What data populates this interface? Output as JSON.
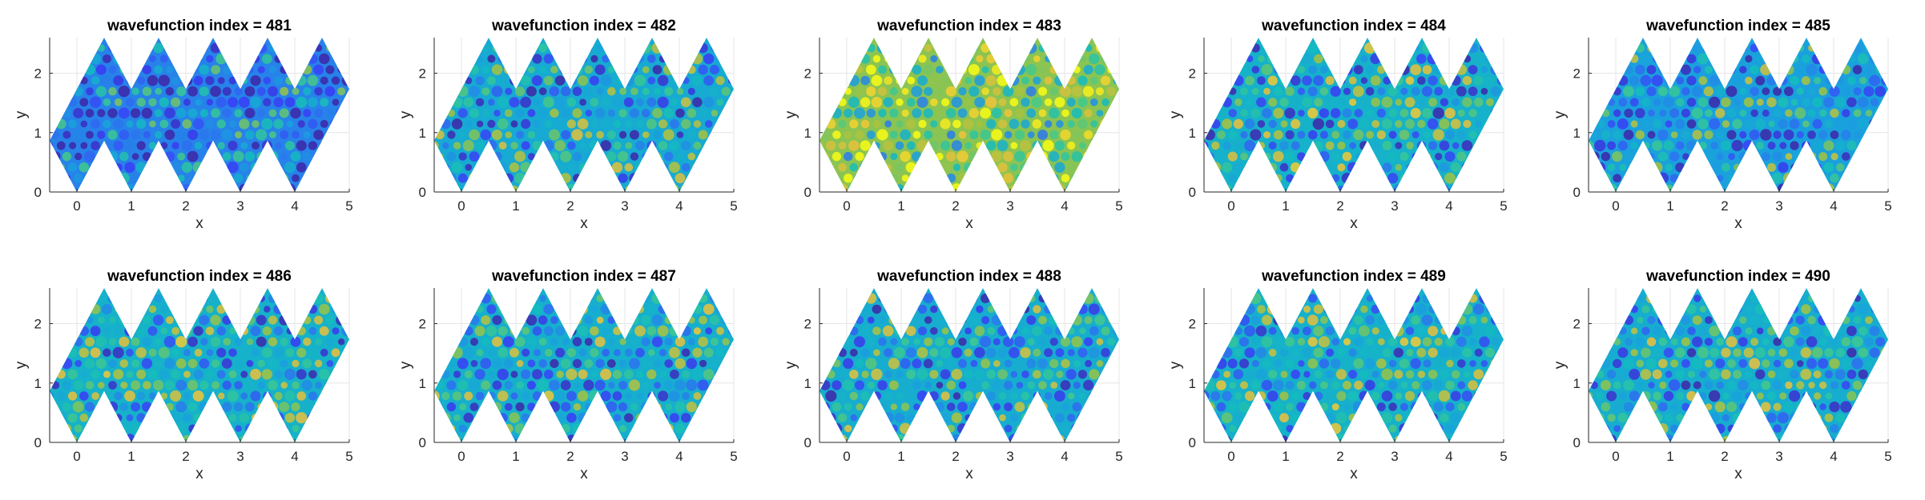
{
  "figure": {
    "background": "#ffffff"
  },
  "style": {
    "axis_color": "#262626",
    "grid_color": "#e6e6e6",
    "colormap": "parula",
    "colormap_stops": [
      "#3e26a8",
      "#3a3cf7",
      "#2f6ef1",
      "#1aa0de",
      "#13bdbd",
      "#3fc98f",
      "#a3c33f",
      "#f0c13b",
      "#f9fb15"
    ]
  },
  "chart_data": [
    {
      "type": "heatmap",
      "title": "wavefunction index = 481",
      "xlabel": "x",
      "ylabel": "y",
      "xlim": [
        -0.5,
        5
      ],
      "ylim": [
        0,
        2.6
      ],
      "xticks": [
        "0",
        "1",
        "2",
        "3",
        "4",
        "5"
      ],
      "yticks": [
        "0",
        "1",
        "2"
      ],
      "grid": true,
      "seed": 481,
      "mean_level": 0.3
    },
    {
      "type": "heatmap",
      "title": "wavefunction index = 482",
      "xlabel": "x",
      "ylabel": "y",
      "xlim": [
        -0.5,
        5
      ],
      "ylim": [
        0,
        2.6
      ],
      "xticks": [
        "0",
        "1",
        "2",
        "3",
        "4",
        "5"
      ],
      "yticks": [
        "0",
        "1",
        "2"
      ],
      "grid": true,
      "seed": 482,
      "mean_level": 0.42
    },
    {
      "type": "heatmap",
      "title": "wavefunction index = 483",
      "xlabel": "x",
      "ylabel": "y",
      "xlim": [
        -0.5,
        5
      ],
      "ylim": [
        0,
        2.6
      ],
      "xticks": [
        "0",
        "1",
        "2",
        "3",
        "4",
        "5"
      ],
      "yticks": [
        "0",
        "1",
        "2"
      ],
      "grid": true,
      "seed": 483,
      "mean_level": 0.72
    },
    {
      "type": "heatmap",
      "title": "wavefunction index = 484",
      "xlabel": "x",
      "ylabel": "y",
      "xlim": [
        -0.5,
        5
      ],
      "ylim": [
        0,
        2.6
      ],
      "xticks": [
        "0",
        "1",
        "2",
        "3",
        "4",
        "5"
      ],
      "yticks": [
        "0",
        "1",
        "2"
      ],
      "grid": true,
      "seed": 484,
      "mean_level": 0.45
    },
    {
      "type": "heatmap",
      "title": "wavefunction index = 485",
      "xlabel": "x",
      "ylabel": "y",
      "xlim": [
        -0.5,
        5
      ],
      "ylim": [
        0,
        2.6
      ],
      "xticks": [
        "0",
        "1",
        "2",
        "3",
        "4",
        "5"
      ],
      "yticks": [
        "0",
        "1",
        "2"
      ],
      "grid": true,
      "seed": 485,
      "mean_level": 0.38
    },
    {
      "type": "heatmap",
      "title": "wavefunction index = 486",
      "xlabel": "x",
      "ylabel": "y",
      "xlim": [
        -0.5,
        5
      ],
      "ylim": [
        0,
        2.6
      ],
      "xticks": [
        "0",
        "1",
        "2",
        "3",
        "4",
        "5"
      ],
      "yticks": [
        "0",
        "1",
        "2"
      ],
      "grid": true,
      "seed": 486,
      "mean_level": 0.45
    },
    {
      "type": "heatmap",
      "title": "wavefunction index = 487",
      "xlabel": "x",
      "ylabel": "y",
      "xlim": [
        -0.5,
        5
      ],
      "ylim": [
        0,
        2.6
      ],
      "xticks": [
        "0",
        "1",
        "2",
        "3",
        "4",
        "5"
      ],
      "yticks": [
        "0",
        "1",
        "2"
      ],
      "grid": true,
      "seed": 487,
      "mean_level": 0.44
    },
    {
      "type": "heatmap",
      "title": "wavefunction index = 488",
      "xlabel": "x",
      "ylabel": "y",
      "xlim": [
        -0.5,
        5
      ],
      "ylim": [
        0,
        2.6
      ],
      "xticks": [
        "0",
        "1",
        "2",
        "3",
        "4",
        "5"
      ],
      "yticks": [
        "0",
        "1",
        "2"
      ],
      "grid": true,
      "seed": 488,
      "mean_level": 0.43
    },
    {
      "type": "heatmap",
      "title": "wavefunction index = 489",
      "xlabel": "x",
      "ylabel": "y",
      "xlim": [
        -0.5,
        5
      ],
      "ylim": [
        0,
        2.6
      ],
      "xticks": [
        "0",
        "1",
        "2",
        "3",
        "4",
        "5"
      ],
      "yticks": [
        "0",
        "1",
        "2"
      ],
      "grid": true,
      "seed": 489,
      "mean_level": 0.45
    },
    {
      "type": "heatmap",
      "title": "wavefunction index = 490",
      "xlabel": "x",
      "ylabel": "y",
      "xlim": [
        -0.5,
        5
      ],
      "ylim": [
        0,
        2.6
      ],
      "xticks": [
        "0",
        "1",
        "2",
        "3",
        "4",
        "5"
      ],
      "yticks": [
        "0",
        "1",
        "2"
      ],
      "grid": true,
      "seed": 490,
      "mean_level": 0.43
    }
  ]
}
